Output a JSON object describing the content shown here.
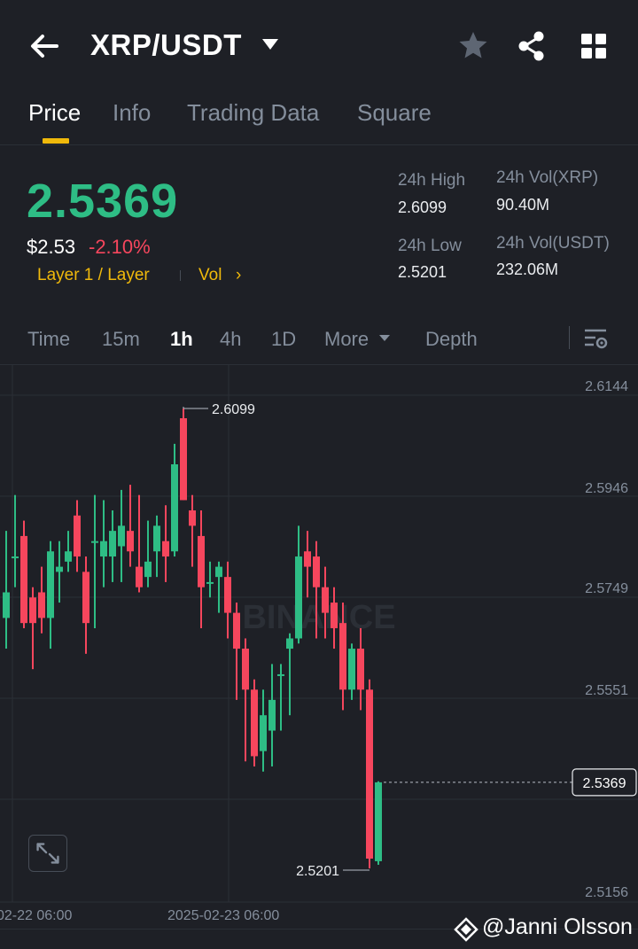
{
  "header": {
    "pair": "XRP/USDT",
    "back_icon": "arrow-left-icon",
    "favorite_icon": "star-icon",
    "share_icon": "share-icon",
    "menu_icon": "grid-icon"
  },
  "tabs": [
    {
      "label": "Price",
      "active": true
    },
    {
      "label": "Info",
      "active": false
    },
    {
      "label": "Trading Data",
      "active": false
    },
    {
      "label": "Square",
      "active": false
    }
  ],
  "ticker": {
    "last_price": "2.5369",
    "usd_price": "$2.53",
    "change_pct": "-2.10%",
    "tag_category": "Layer 1 / Layer",
    "tag_vol": "Vol",
    "tag_chevron": "›",
    "stats": {
      "high_label": "24h High",
      "high_value": "2.6099",
      "low_label": "24h Low",
      "low_value": "2.5201",
      "vol_base_label": "24h Vol(XRP)",
      "vol_base_value": "90.40M",
      "vol_quote_label": "24h Vol(USDT)",
      "vol_quote_value": "232.06M"
    }
  },
  "intervals": [
    {
      "label": "Time",
      "active": false
    },
    {
      "label": "15m",
      "active": false
    },
    {
      "label": "1h",
      "active": true
    },
    {
      "label": "4h",
      "active": false
    },
    {
      "label": "1D",
      "active": false
    },
    {
      "label": "More",
      "active": false
    },
    {
      "label": "Depth",
      "active": false
    }
  ],
  "colors": {
    "up": "#2ebd85",
    "down": "#f6465d",
    "accent": "#f0b90b",
    "grid": "#2b2f36",
    "muted": "#848e9c"
  },
  "chart_data": {
    "type": "candlestick",
    "interval": "1h",
    "y_ticks": [
      "2.6144",
      "2.5946",
      "2.5749",
      "2.5551",
      "2.5156"
    ],
    "ylim": [
      2.5156,
      2.6144
    ],
    "x_ticks": [
      "02-22 06:00",
      "2025-02-23 06:00"
    ],
    "high_marker": "2.6099",
    "low_marker": "2.5201",
    "last_price_tag": "2.5369",
    "watermark": "BINANCE",
    "candles": [
      [
        2.574,
        2.569,
        2.563,
        2.586,
        "up"
      ],
      [
        2.581,
        2.581,
        2.575,
        2.593,
        "up"
      ],
      [
        2.568,
        2.585,
        2.567,
        2.588,
        "down"
      ],
      [
        2.573,
        2.568,
        2.559,
        2.575,
        "down"
      ],
      [
        2.574,
        2.569,
        2.566,
        2.579,
        "down"
      ],
      [
        2.569,
        2.582,
        2.563,
        2.584,
        "up"
      ],
      [
        2.578,
        2.579,
        2.572,
        2.584,
        "up"
      ],
      [
        2.582,
        2.58,
        2.578,
        2.586,
        "up"
      ],
      [
        2.589,
        2.581,
        2.578,
        2.592,
        "down"
      ],
      [
        2.578,
        2.568,
        2.562,
        2.581,
        "down"
      ],
      [
        2.584,
        2.584,
        2.567,
        2.593,
        "up"
      ],
      [
        2.581,
        2.584,
        2.575,
        2.592,
        "up"
      ],
      [
        2.586,
        2.581,
        2.576,
        2.59,
        "up"
      ],
      [
        2.583,
        2.587,
        2.576,
        2.594,
        "up"
      ],
      [
        2.586,
        2.582,
        2.579,
        2.595,
        "down"
      ],
      [
        2.579,
        2.575,
        2.574,
        2.593,
        "down"
      ],
      [
        2.577,
        2.58,
        2.575,
        2.588,
        "up"
      ],
      [
        2.587,
        2.582,
        2.577,
        2.589,
        "up"
      ],
      [
        2.581,
        2.584,
        2.576,
        2.591,
        "down"
      ],
      [
        2.582,
        2.599,
        2.581,
        2.603,
        "up"
      ],
      [
        2.608,
        2.592,
        2.592,
        2.6099,
        "down"
      ],
      [
        2.59,
        2.587,
        2.579,
        2.593,
        "down"
      ],
      [
        2.585,
        2.575,
        2.567,
        2.59,
        "down"
      ],
      [
        2.576,
        2.576,
        2.573,
        2.58,
        "up"
      ],
      [
        2.577,
        2.579,
        2.57,
        2.58,
        "up"
      ],
      [
        2.577,
        2.57,
        2.565,
        2.58,
        "down"
      ],
      [
        2.57,
        2.563,
        2.553,
        2.572,
        "down"
      ],
      [
        2.563,
        2.555,
        2.541,
        2.565,
        "down"
      ],
      [
        2.555,
        2.542,
        2.54,
        2.557,
        "down"
      ],
      [
        2.543,
        2.55,
        2.539,
        2.555,
        "up"
      ],
      [
        2.547,
        2.553,
        2.54,
        2.56,
        "up"
      ],
      [
        2.558,
        2.558,
        2.547,
        2.56,
        "up"
      ],
      [
        2.563,
        2.565,
        2.55,
        2.566,
        "up"
      ],
      [
        2.565,
        2.581,
        2.564,
        2.587,
        "up"
      ],
      [
        2.582,
        2.579,
        2.573,
        2.586,
        "down"
      ],
      [
        2.581,
        2.575,
        2.565,
        2.584,
        "down"
      ],
      [
        2.575,
        2.57,
        2.565,
        2.579,
        "down"
      ],
      [
        2.572,
        2.567,
        2.563,
        2.575,
        "down"
      ],
      [
        2.568,
        2.555,
        2.551,
        2.572,
        "down"
      ],
      [
        2.563,
        2.555,
        2.553,
        2.564,
        "up"
      ],
      [
        2.563,
        2.555,
        2.551,
        2.567,
        "down"
      ],
      [
        2.555,
        2.522,
        2.5201,
        2.557,
        "down"
      ],
      [
        2.5215,
        2.5369,
        2.5208,
        2.5371,
        "up"
      ]
    ]
  },
  "expand_icon": "expand-arrows-icon",
  "settings_icon": "chart-settings-icon",
  "attribution": {
    "icon": "binance-square-logo-icon",
    "text": "@Janni Olsson"
  }
}
